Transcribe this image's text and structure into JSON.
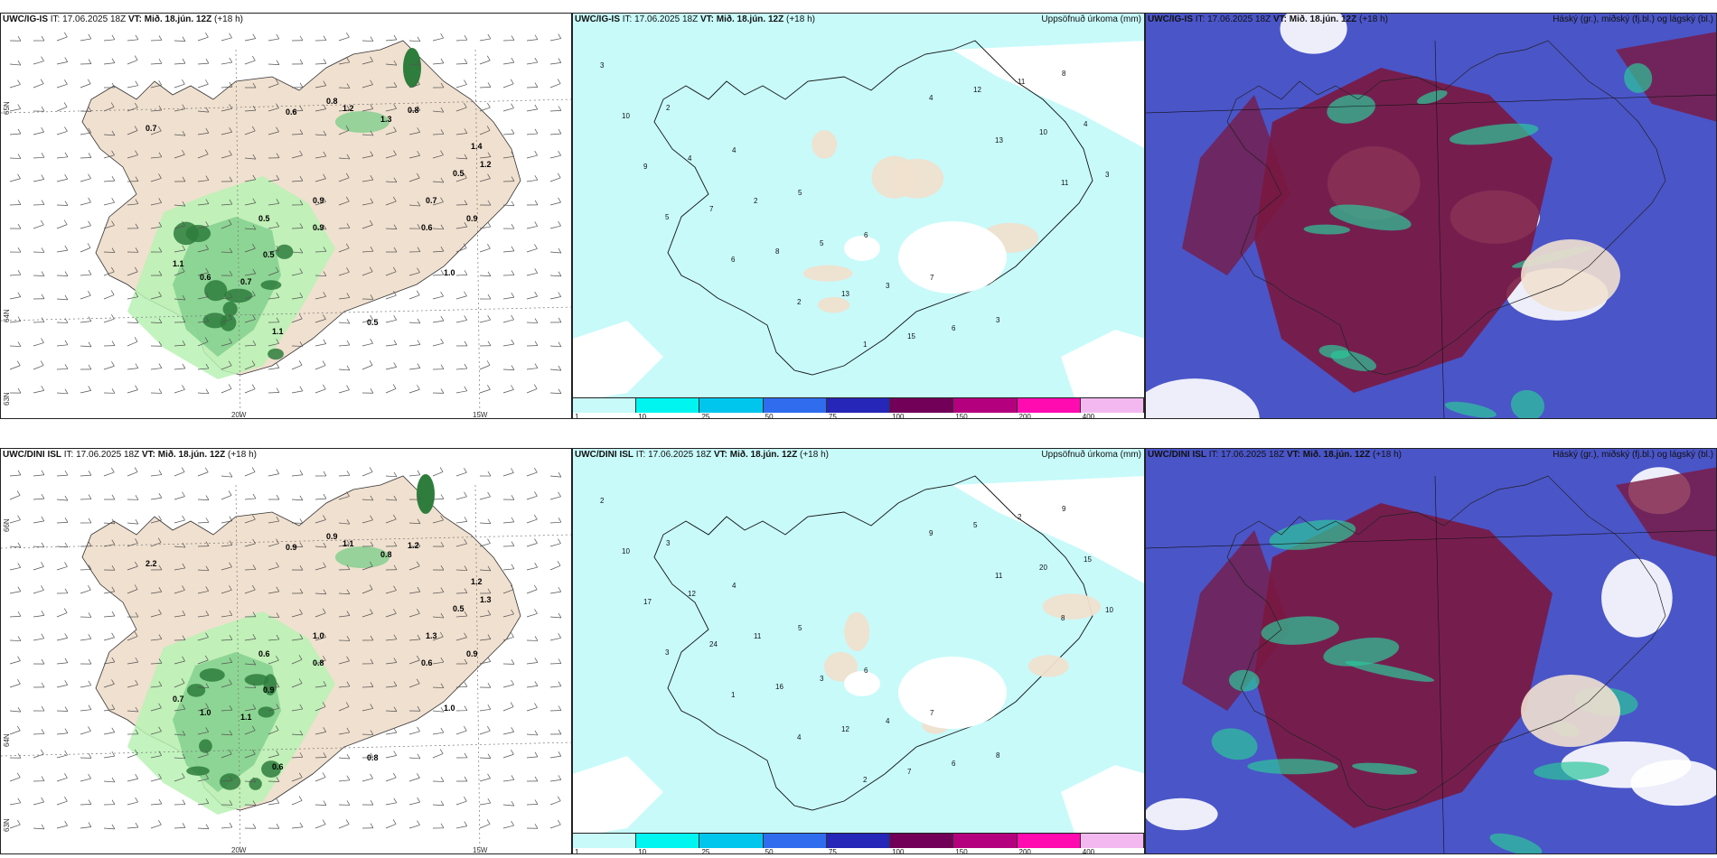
{
  "rows": [
    {
      "model": "UWC/IG-IS",
      "it": "IT: 17.06.2025 18Z",
      "vt_label": "VT:",
      "vt": "Mið. 18.jún. 12Z",
      "lead": "(+18 h)",
      "lat_labels": [
        "65N",
        "64N",
        "63N"
      ],
      "lon_labels": [
        "20W",
        "15W"
      ],
      "precip_values": [
        "0.7",
        "0.6",
        "0.8",
        "1.2",
        "0.8",
        "1.3",
        "0.5",
        "0.9",
        "0.5",
        "0.7",
        "1.1",
        "0.6",
        "0.9",
        "1.1",
        "0.7",
        "0.5",
        "1.4",
        "0.9",
        "1.0",
        "0.5",
        "0.6",
        "1.2"
      ],
      "accum_values": [
        "3",
        "2",
        "4",
        "5",
        "6",
        "7",
        "3",
        "8",
        "10",
        "4",
        "2",
        "5",
        "3",
        "6",
        "11",
        "4",
        "9",
        "7",
        "8",
        "13",
        "15",
        "12",
        "10",
        "3",
        "5",
        "6",
        "2",
        "1",
        "4",
        "13",
        "11"
      ]
    },
    {
      "model": "UWC/DINI ISL",
      "it": "IT: 17.06.2025 18Z",
      "vt_label": "VT:",
      "vt": "Mið. 18.jún. 12Z",
      "lead": "(+18 h)",
      "lat_labels": [
        "66N",
        "64N",
        "63N"
      ],
      "lon_labels": [
        "20W",
        "15W"
      ],
      "precip_values": [
        "2.2",
        "0.9",
        "0.9",
        "1.1",
        "1.2",
        "0.8",
        "0.6",
        "1.0",
        "0.9",
        "1.1",
        "0.7",
        "1.0",
        "0.8",
        "0.6",
        "1.3",
        "0.5",
        "1.2",
        "0.9",
        "1.0",
        "0.8",
        "0.6",
        "1.3"
      ],
      "accum_values": [
        "2",
        "3",
        "4",
        "5",
        "6",
        "7",
        "8",
        "9",
        "10",
        "12",
        "11",
        "3",
        "4",
        "6",
        "2",
        "15",
        "17",
        "24",
        "16",
        "12",
        "7",
        "5",
        "20",
        "10",
        "3",
        "1",
        "4",
        "2",
        "9",
        "11",
        "8"
      ]
    }
  ],
  "accum_title": "Uppsöfnuð úrkoma (mm)",
  "cloud_title": "Háský (gr.), miðský (fj.bl.) og lágský (bl.)",
  "colorbar": {
    "labels": [
      "1",
      "10",
      "25",
      "50",
      "75",
      "100",
      "150",
      "200",
      "400"
    ],
    "colors": [
      "#c8fafa",
      "#00f5f0",
      "#00c6ee",
      "#2f6dee",
      "#2626b8",
      "#720058",
      "#b4007e",
      "#ff0bb0",
      "#f4b8f0"
    ]
  },
  "colors": {
    "land": "#f0e0cf",
    "precip_light": "#b9f2b4",
    "precip_med": "#7fce8b",
    "precip_dark": "#2e7d3c",
    "accum_fill": "#c8fafa",
    "cloud_high": "#7a1840",
    "cloud_mid": "#4a55c8",
    "cloud_low": "#2cc69a"
  }
}
